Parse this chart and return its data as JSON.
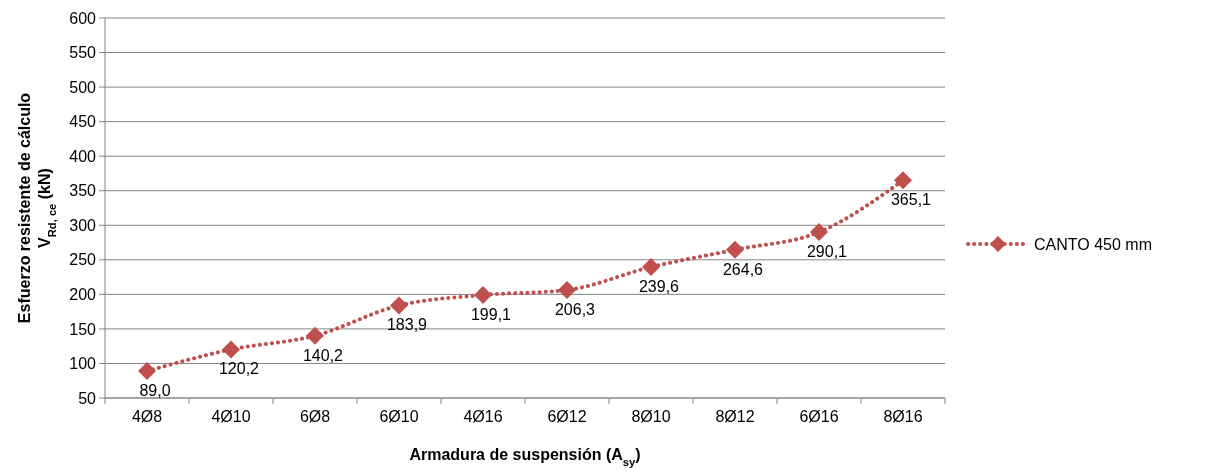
{
  "chart_data": {
    "type": "line",
    "xlabel": "Armadura de suspensión (A$_{sy}$)",
    "ylabel": "Esfuerzo resistente de cálculo\nV$_{Rd, ce}$ (kN)",
    "categories": [
      "4Ø8",
      "4Ø10",
      "6Ø8",
      "6Ø10",
      "4Ø16",
      "6Ø12",
      "8Ø10",
      "8Ø12",
      "6Ø16",
      "8Ø16"
    ],
    "series": [
      {
        "name": "CANTO 450 mm",
        "color": "#c0504d",
        "values": [
          89.0,
          120.2,
          140.2,
          183.9,
          199.1,
          206.3,
          239.6,
          264.6,
          290.1,
          365.1
        ],
        "value_labels": [
          "89,0",
          "120,2",
          "140,2",
          "183,9",
          "199,1",
          "206,3",
          "239,6",
          "264,6",
          "290,1",
          "365,1"
        ]
      }
    ],
    "ylim": [
      50,
      600
    ],
    "yticks": [
      50,
      100,
      150,
      200,
      250,
      300,
      350,
      400,
      450,
      500,
      550,
      600
    ],
    "grid": "y",
    "legend": "right",
    "marker": "diamond",
    "line_style": "dotted"
  }
}
